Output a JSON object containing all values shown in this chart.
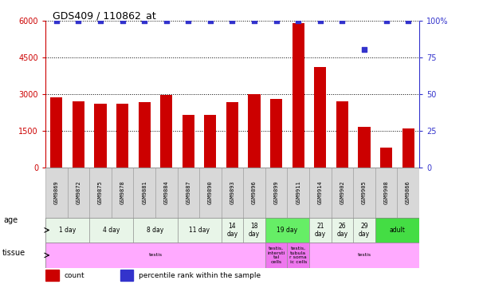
{
  "title": "GDS409 / 110862_at",
  "samples": [
    "GSM9869",
    "GSM9872",
    "GSM9875",
    "GSM9878",
    "GSM9881",
    "GSM9884",
    "GSM9887",
    "GSM9890",
    "GSM9893",
    "GSM9896",
    "GSM9899",
    "GSM9911",
    "GSM9914",
    "GSM9902",
    "GSM9905",
    "GSM9908",
    "GSM9866"
  ],
  "counts": [
    2850,
    2700,
    2600,
    2600,
    2650,
    2950,
    2150,
    2150,
    2650,
    3000,
    2800,
    5900,
    4100,
    2700,
    1650,
    800,
    1600
  ],
  "percentiles": [
    100,
    100,
    100,
    100,
    100,
    100,
    100,
    100,
    100,
    100,
    100,
    100,
    100,
    100,
    80,
    100,
    100
  ],
  "ylim_left": [
    0,
    6000
  ],
  "ylim_right": [
    0,
    100
  ],
  "yticks_left": [
    0,
    1500,
    3000,
    4500,
    6000
  ],
  "yticks_right": [
    0,
    25,
    50,
    75,
    100
  ],
  "bar_color": "#cc0000",
  "dot_color": "#3333cc",
  "age_groups": [
    {
      "label": "1 day",
      "start": 0,
      "end": 2,
      "color": "#e8f5e8"
    },
    {
      "label": "4 day",
      "start": 2,
      "end": 4,
      "color": "#e8f5e8"
    },
    {
      "label": "8 day",
      "start": 4,
      "end": 6,
      "color": "#e8f5e8"
    },
    {
      "label": "11 day",
      "start": 6,
      "end": 8,
      "color": "#e8f5e8"
    },
    {
      "label": "14\nday",
      "start": 8,
      "end": 9,
      "color": "#e8f5e8"
    },
    {
      "label": "18\nday",
      "start": 9,
      "end": 10,
      "color": "#e8f5e8"
    },
    {
      "label": "19 day",
      "start": 10,
      "end": 12,
      "color": "#66ee66"
    },
    {
      "label": "21\nday",
      "start": 12,
      "end": 13,
      "color": "#e8f5e8"
    },
    {
      "label": "26\nday",
      "start": 13,
      "end": 14,
      "color": "#e8f5e8"
    },
    {
      "label": "29\nday",
      "start": 14,
      "end": 15,
      "color": "#e8f5e8"
    },
    {
      "label": "adult",
      "start": 15,
      "end": 17,
      "color": "#44dd44"
    }
  ],
  "tissue_groups": [
    {
      "label": "testis",
      "start": 0,
      "end": 10,
      "color": "#ffaaff"
    },
    {
      "label": "testis,\nintersti\ntal\ncells",
      "start": 10,
      "end": 11,
      "color": "#ee77ee"
    },
    {
      "label": "testis,\ntubula\nr soma\nic cells",
      "start": 11,
      "end": 12,
      "color": "#ee77ee"
    },
    {
      "label": "testis",
      "start": 12,
      "end": 17,
      "color": "#ffaaff"
    }
  ]
}
